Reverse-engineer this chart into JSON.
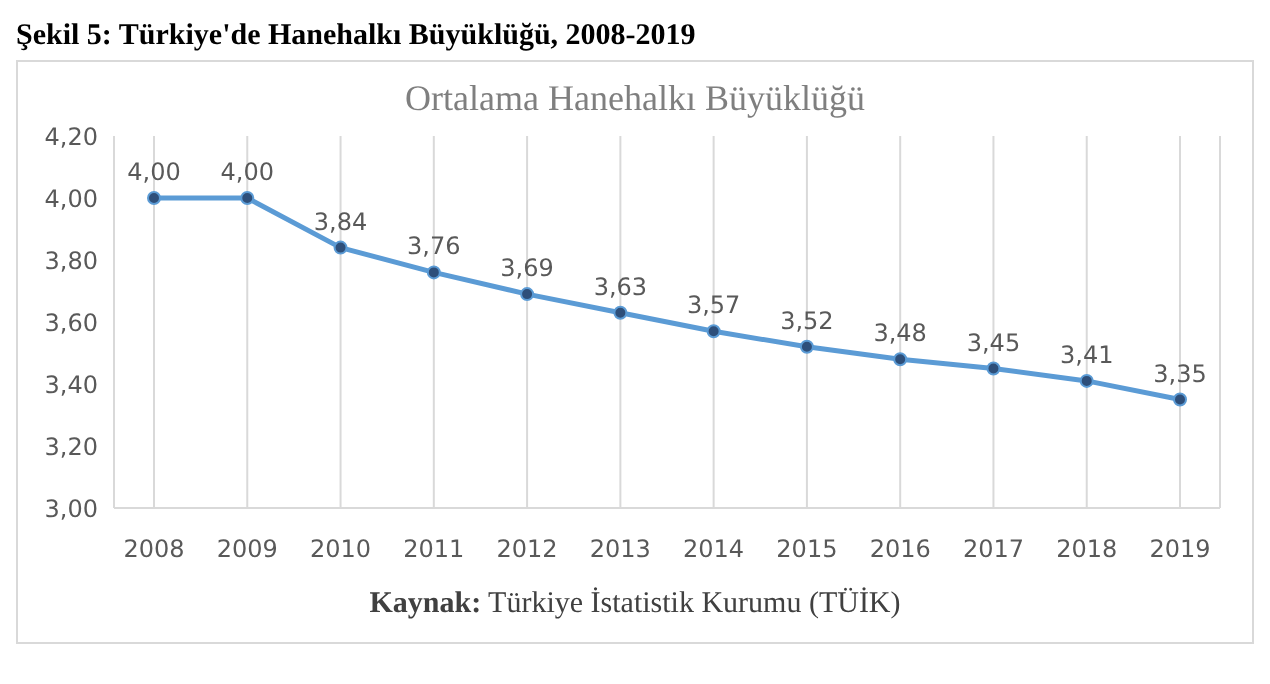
{
  "chart_data": {
    "type": "line",
    "title": "Şekil 5:   Türkiye'de Hanehalkı Büyüklüğü, 2008-2019",
    "subtitle": "Ortalama Hanehalkı Büyüklüğü",
    "annotations": [
      "Kaynak: Türkiye İstatistik Kurumu (TÜİK)"
    ],
    "categories": [
      "2008",
      "2009",
      "2010",
      "2011",
      "2012",
      "2013",
      "2014",
      "2015",
      "2016",
      "2017",
      "2018",
      "2019"
    ],
    "series": [
      {
        "color": "#5b9bd5",
        "values": [
          4.0,
          4.0,
          3.84,
          3.76,
          3.69,
          3.63,
          3.57,
          3.52,
          3.48,
          3.45,
          3.41,
          3.35
        ],
        "value_labels": [
          "4,00",
          "4,00",
          "3,84",
          "3,76",
          "3,69",
          "3,63",
          "3,57",
          "3,52",
          "3,48",
          "3,45",
          "3,41",
          "3,35"
        ]
      }
    ],
    "ylim": [
      3.0,
      4.2
    ],
    "yticks": [
      {
        "value": 3.0,
        "label": "3,00"
      },
      {
        "value": 3.2,
        "label": "3,20"
      },
      {
        "value": 3.4,
        "label": "3,40"
      },
      {
        "value": 3.6,
        "label": "3,60"
      },
      {
        "value": 3.8,
        "label": "3,80"
      },
      {
        "value": 4.0,
        "label": "4,00"
      },
      {
        "value": 4.2,
        "label": "4,20"
      }
    ],
    "grid": "x",
    "marker": "circle"
  }
}
